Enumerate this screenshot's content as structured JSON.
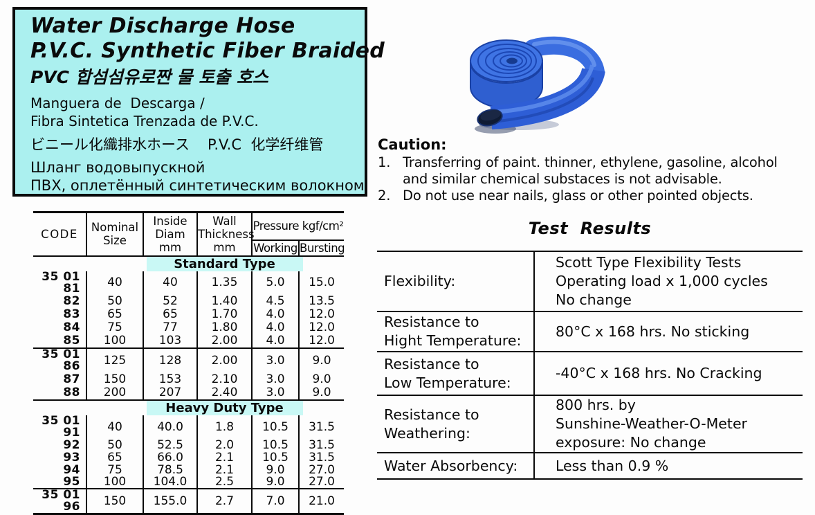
{
  "colors": {
    "panel_cyan": "#abf0ef",
    "highlight_cyan": "#c9f8f5",
    "ink": "#0a0a0a",
    "hose_blue": "#2f62d4",
    "hose_blue_light": "#5d8cec",
    "hose_blue_dark": "#1a41a5",
    "hose_opening": "#0f1b33"
  },
  "title_box": {
    "title_en_1": "Water Discharge Hose",
    "title_en_2": "P.V.C. Synthetic Fiber Braided",
    "title_ko": "PVC 합섬섬유로짠 물 토출 호스",
    "subtitle_es_1": "Manguera de  Descarga /",
    "subtitle_es_2": "Fibra Sintetica Trenzada de P.V.C.",
    "subtitle_ja": "ビニール化織排水ホース",
    "subtitle_zh": "P.V.C  化学纤维管",
    "subtitle_ru_1": "Шланг водовыпускной",
    "subtitle_ru_2": "ПВХ, оплетённый синтетическим волокном"
  },
  "caution": {
    "heading": "Caution:",
    "items": [
      {
        "num": "1.",
        "text": "Transferring of paint. thinner, ethylene, gasoline, alcohol\nand similar chemical substaces is not advisable."
      },
      {
        "num": "2.",
        "text": "Do not use near nails, glass or other pointed objects."
      }
    ]
  },
  "spec_table": {
    "headers": {
      "code": "CODE",
      "nominal": "Nominal\nSize",
      "inside": "Inside\nDiam\nmm",
      "wall": "Wall\nThickness\nmm",
      "pressure": "Pressure kgf/cm²",
      "working": "Working",
      "bursting": "Bursting"
    },
    "sections": [
      {
        "label": "Standard Type",
        "blocks": [
          [
            [
              "35 01 81",
              "40",
              "40",
              "1.35",
              "5.0",
              "15.0"
            ],
            [
              "82",
              "50",
              "52",
              "1.40",
              "4.5",
              "13.5"
            ],
            [
              "83",
              "65",
              "65",
              "1.70",
              "4.0",
              "12.0"
            ],
            [
              "84",
              "75",
              "77",
              "1.80",
              "4.0",
              "12.0"
            ],
            [
              "85",
              "100",
              "103",
              "2.00",
              "4.0",
              "12.0"
            ]
          ],
          [
            [
              "35 01 86",
              "125",
              "128",
              "2.00",
              "3.0",
              "9.0"
            ],
            [
              "87",
              "150",
              "153",
              "2.10",
              "3.0",
              "9.0"
            ],
            [
              "88",
              "200",
              "207",
              "2.40",
              "3.0",
              "9.0"
            ]
          ]
        ]
      },
      {
        "label": "Heavy Duty Type",
        "blocks": [
          [
            [
              "35 01 91",
              "40",
              "40.0",
              "1.8",
              "10.5",
              "31.5"
            ],
            [
              "92",
              "50",
              "52.5",
              "2.0",
              "10.5",
              "31.5"
            ],
            [
              "93",
              "65",
              "66.0",
              "2.1",
              "10.5",
              "31.5"
            ],
            [
              "94",
              "75",
              "78.5",
              "2.1",
              "9.0",
              "27.0"
            ],
            [
              "95",
              "100",
              "104.0",
              "2.5",
              "9.0",
              "27.0"
            ]
          ],
          [
            [
              "35 01 96",
              "150",
              "155.0",
              "2.7",
              "7.0",
              "21.0"
            ]
          ]
        ]
      }
    ]
  },
  "test_results": {
    "title": "Test  Results",
    "rows": [
      {
        "label": "Flexibility:",
        "value": "Scott Type Flexibility Tests\nOperating load x 1,000 cycles\nNo change"
      },
      {
        "label": "Resistance to\nHight Temperature:",
        "value": "80°C x 168 hrs. No sticking"
      },
      {
        "label": "Resistance to\nLow Temperature:",
        "value": "-40°C x 168 hrs.  No Cracking"
      },
      {
        "label": "Resistance to\nWeathering:",
        "value": "800 hrs. by\nSunshine-Weather-O-Meter\nexposure: No change"
      },
      {
        "label": "Water Absorbency:",
        "value": "Less than 0.9 %"
      }
    ]
  },
  "illustration": {
    "name": "blue-layflat-hose-coil"
  }
}
